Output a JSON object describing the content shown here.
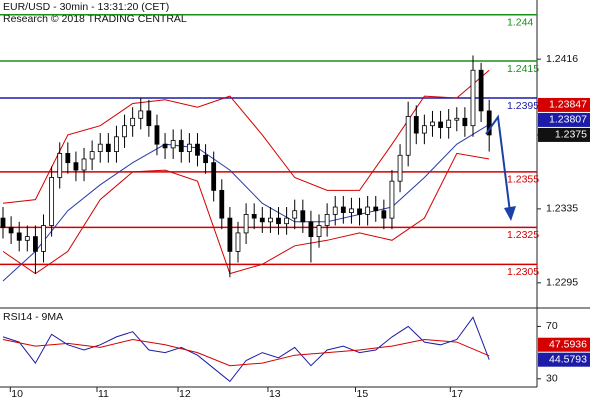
{
  "chart_data": [
    {
      "type": "candlestick",
      "title": "EUR/USD - 30min - 13:31:20 (CET)",
      "subtitle": "Research © 2018 TRADING CENTRAL",
      "xlim": [
        0,
        65.9
      ],
      "xticks": [
        {
          "value": 0.9,
          "label": "10"
        },
        {
          "value": 11.6,
          "label": "11"
        },
        {
          "value": 21.6,
          "label": "12"
        },
        {
          "value": 32.7,
          "label": "13"
        },
        {
          "value": 43.5,
          "label": "15"
        },
        {
          "value": 55.2,
          "label": "17"
        }
      ],
      "ylim": [
        1.2283,
        1.2448
      ],
      "yticks": [
        1.2416,
        1.2375,
        1.2335,
        1.2295
      ],
      "candle_color": "#000000",
      "open": [
        1.233,
        1.2325,
        1.2322,
        1.2318,
        1.232,
        1.2312,
        1.2326,
        1.2352,
        1.2365,
        1.236,
        1.2356,
        1.2362,
        1.2366,
        1.237,
        1.2366,
        1.2374,
        1.238,
        1.2384,
        1.2388,
        1.238,
        1.237,
        1.2368,
        1.2372,
        1.2366,
        1.237,
        1.2364,
        1.236,
        1.2345,
        1.233,
        1.2312,
        1.2322,
        1.2332,
        1.233,
        1.2328,
        1.233,
        1.2327,
        1.233,
        1.2334,
        1.2328,
        1.232,
        1.2326,
        1.2332,
        1.2336,
        1.2333,
        1.2335,
        1.2332,
        1.2336,
        1.2334,
        1.233,
        1.235,
        1.2364,
        1.2385,
        1.2376,
        1.238,
        1.2382,
        1.2379,
        1.2383,
        1.2384,
        1.238,
        1.241,
        1.2388
      ],
      "high": [
        1.2336,
        1.2331,
        1.2328,
        1.2326,
        1.2326,
        1.2332,
        1.2358,
        1.2371,
        1.2371,
        1.2366,
        1.2368,
        1.2372,
        1.2376,
        1.2376,
        1.238,
        1.2386,
        1.239,
        1.2395,
        1.2394,
        1.2386,
        1.2376,
        1.2378,
        1.2378,
        1.2376,
        1.2376,
        1.237,
        1.2366,
        1.2351,
        1.2336,
        1.2328,
        1.2338,
        1.2338,
        1.2336,
        1.2336,
        1.2336,
        1.2336,
        1.234,
        1.234,
        1.2334,
        1.2332,
        1.2338,
        1.2342,
        1.2342,
        1.2341,
        1.2341,
        1.2342,
        1.2342,
        1.234,
        1.2356,
        1.237,
        1.2393,
        1.2391,
        1.2386,
        1.2388,
        1.2388,
        1.2389,
        1.239,
        1.239,
        1.2418,
        1.2414,
        1.2394
      ],
      "low": [
        1.2319,
        1.2316,
        1.2312,
        1.2312,
        1.23,
        1.2306,
        1.232,
        1.2346,
        1.2354,
        1.235,
        1.235,
        1.2356,
        1.236,
        1.236,
        1.236,
        1.2368,
        1.2374,
        1.2378,
        1.2374,
        1.2364,
        1.2362,
        1.2362,
        1.236,
        1.236,
        1.2358,
        1.2354,
        1.2339,
        1.2324,
        1.2298,
        1.2306,
        1.2316,
        1.2324,
        1.2322,
        1.2322,
        1.2321,
        1.2321,
        1.2324,
        1.2322,
        1.2306,
        1.2314,
        1.232,
        1.2326,
        1.2327,
        1.2327,
        1.2326,
        1.2326,
        1.2328,
        1.2324,
        1.2324,
        1.2344,
        1.2358,
        1.237,
        1.237,
        1.2374,
        1.2373,
        1.2373,
        1.2377,
        1.2374,
        1.2374,
        1.2382,
        1.2366
      ],
      "close": [
        1.2325,
        1.2322,
        1.2318,
        1.232,
        1.2312,
        1.2326,
        1.2352,
        1.2365,
        1.236,
        1.2356,
        1.2362,
        1.2366,
        1.237,
        1.2366,
        1.2374,
        1.238,
        1.2384,
        1.2388,
        1.238,
        1.237,
        1.2368,
        1.2372,
        1.2366,
        1.237,
        1.2364,
        1.236,
        1.2345,
        1.233,
        1.2312,
        1.2322,
        1.2332,
        1.233,
        1.2328,
        1.233,
        1.2327,
        1.233,
        1.2334,
        1.2328,
        1.232,
        1.2326,
        1.2332,
        1.2336,
        1.2333,
        1.2335,
        1.2332,
        1.2336,
        1.2334,
        1.233,
        1.235,
        1.2364,
        1.2385,
        1.2376,
        1.238,
        1.2382,
        1.2379,
        1.2383,
        1.2384,
        1.238,
        1.241,
        1.2388,
        1.2375
      ],
      "series": [
        {
          "color": "#d40000",
          "x": [
            0,
            4,
            8,
            12,
            16,
            20,
            24,
            28,
            32,
            36,
            40,
            44,
            48,
            52,
            56,
            60
          ],
          "values": [
            1.2338,
            1.234,
            1.2375,
            1.238,
            1.2392,
            1.2394,
            1.239,
            1.2396,
            1.2375,
            1.2352,
            1.2345,
            1.2345,
            1.237,
            1.2396,
            1.2395,
            1.241
          ]
        },
        {
          "color": "#d40000",
          "x": [
            0,
            4,
            8,
            12,
            16,
            20,
            24,
            28,
            32,
            36,
            40,
            44,
            48,
            52,
            56,
            60
          ],
          "values": [
            1.2312,
            1.23,
            1.2312,
            1.234,
            1.2355,
            1.2356,
            1.235,
            1.23,
            1.2305,
            1.2315,
            1.2318,
            1.2322,
            1.2318,
            1.233,
            1.2365,
            1.2362
          ]
        },
        {
          "color": "#2b3aa8",
          "x": [
            0,
            4,
            8,
            12,
            16,
            20,
            24,
            28,
            32,
            36,
            40,
            44,
            48,
            52,
            56,
            60
          ],
          "values": [
            1.2296,
            1.2312,
            1.2334,
            1.2348,
            1.236,
            1.237,
            1.2368,
            1.2356,
            1.2338,
            1.2328,
            1.2328,
            1.2332,
            1.2336,
            1.2352,
            1.237,
            1.23807
          ]
        }
      ],
      "levels": [
        {
          "value": 1.244,
          "color": "#1a8f1a"
        },
        {
          "value": 1.2415,
          "color": "#1a8f1a"
        },
        {
          "value": 1.2395,
          "color": "#1c1ca8"
        },
        {
          "value": 1.2355,
          "color": "#d40000"
        },
        {
          "value": 1.2325,
          "color": "#d40000"
        },
        {
          "value": 1.2305,
          "color": "#d40000"
        }
      ],
      "price_tags": [
        {
          "value": 1.23847,
          "color": "#d40000"
        },
        {
          "value": 1.23807,
          "color": "#1c1ca8"
        },
        {
          "value": 1.2375,
          "color": "#111111"
        }
      ]
    },
    {
      "type": "line",
      "title": "RSI14 - 9MA",
      "xlim": [
        0,
        65.9
      ],
      "ylim": [
        24.5,
        83.3
      ],
      "yticks": [
        70,
        30
      ],
      "series": [
        {
          "color": "#1c1ca8",
          "x": [
            0,
            2,
            4,
            6,
            8,
            10,
            12,
            14,
            16,
            18,
            20,
            22,
            24,
            26,
            28,
            30,
            32,
            34,
            36,
            38,
            40,
            42,
            44,
            46,
            48,
            50,
            52,
            54,
            56,
            58,
            60
          ],
          "values": [
            62,
            58,
            42,
            64,
            56,
            52,
            56,
            62,
            66,
            52,
            50,
            54,
            48,
            38,
            28,
            44,
            50,
            46,
            54,
            40,
            52,
            55,
            50,
            52,
            62,
            70,
            58,
            56,
            60,
            77,
            44.5793
          ]
        },
        {
          "color": "#d40000",
          "x": [
            0,
            4,
            8,
            12,
            16,
            20,
            24,
            28,
            32,
            36,
            40,
            44,
            48,
            52,
            56,
            60
          ],
          "values": [
            60,
            55,
            57,
            54,
            60,
            56,
            50,
            40,
            42,
            48,
            50,
            52,
            55,
            60,
            58,
            47.5936
          ]
        }
      ],
      "price_tags": [
        {
          "value": 47.5936,
          "color": "#d40000"
        },
        {
          "value": 44.5793,
          "color": "#1c1ca8"
        }
      ]
    }
  ]
}
